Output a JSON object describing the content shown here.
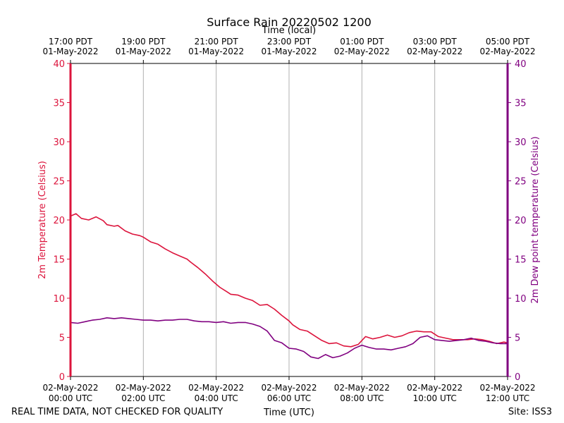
{
  "chart_data": {
    "type": "line",
    "title": "Surface Rain 20220502 1200",
    "top_axis_label": "Time (local)",
    "xlabel": "Time (UTC)",
    "ylabel_left": "2m Temperature (Celsius)",
    "ylabel_right": "2m Dew point temperature (Celsius)",
    "footer_left": "REAL TIME DATA, NOT CHECKED FOR QUALITY",
    "footer_right": "Site: ISS3",
    "ylim": [
      0,
      40
    ],
    "yticks": [
      0,
      5,
      10,
      15,
      20,
      25,
      30,
      35,
      40
    ],
    "xlim_hours": [
      0,
      12
    ],
    "grid": "vertical",
    "colors": {
      "temperature": "#dc143c",
      "dewpoint": "#800080",
      "grid": "#b0b0b0",
      "axis": "#000000"
    },
    "x_ticks_utc": [
      {
        "hour": 0,
        "date": "02-May-2022",
        "time": "00:00 UTC"
      },
      {
        "hour": 2,
        "date": "02-May-2022",
        "time": "02:00 UTC"
      },
      {
        "hour": 4,
        "date": "02-May-2022",
        "time": "04:00 UTC"
      },
      {
        "hour": 6,
        "date": "02-May-2022",
        "time": "06:00 UTC"
      },
      {
        "hour": 8,
        "date": "02-May-2022",
        "time": "08:00 UTC"
      },
      {
        "hour": 10,
        "date": "02-May-2022",
        "time": "10:00 UTC"
      },
      {
        "hour": 12,
        "date": "02-May-2022",
        "time": "12:00 UTC"
      }
    ],
    "x_ticks_local": [
      {
        "hour": 0,
        "time": "17:00 PDT",
        "date": "01-May-2022"
      },
      {
        "hour": 2,
        "time": "19:00 PDT",
        "date": "01-May-2022"
      },
      {
        "hour": 4,
        "time": "21:00 PDT",
        "date": "01-May-2022"
      },
      {
        "hour": 6,
        "time": "23:00 PDT",
        "date": "01-May-2022"
      },
      {
        "hour": 8,
        "time": "01:00 PDT",
        "date": "02-May-2022"
      },
      {
        "hour": 10,
        "time": "03:00 PDT",
        "date": "02-May-2022"
      },
      {
        "hour": 12,
        "time": "05:00 PDT",
        "date": "02-May-2022"
      }
    ],
    "series": [
      {
        "name": "2m Temperature",
        "axis": "left",
        "x": [
          0,
          0.15,
          0.3,
          0.5,
          0.7,
          0.9,
          1.0,
          1.2,
          1.3,
          1.5,
          1.7,
          1.9,
          2.0,
          2.2,
          2.4,
          2.6,
          2.8,
          3.0,
          3.2,
          3.3,
          3.5,
          3.7,
          3.9,
          4.1,
          4.3,
          4.4,
          4.6,
          4.8,
          5.0,
          5.2,
          5.4,
          5.6,
          5.8,
          6.0,
          6.1,
          6.3,
          6.5,
          6.7,
          6.9,
          7.1,
          7.3,
          7.5,
          7.7,
          7.9,
          8.1,
          8.3,
          8.5,
          8.7,
          8.9,
          9.1,
          9.3,
          9.5,
          9.7,
          9.9,
          10.1,
          10.3,
          10.5,
          10.7,
          10.9,
          11.1,
          11.3,
          11.5,
          11.7,
          11.9,
          12.0
        ],
        "y": [
          20.5,
          20.8,
          20.2,
          20.0,
          20.4,
          19.9,
          19.4,
          19.2,
          19.3,
          18.6,
          18.2,
          18.0,
          17.8,
          17.2,
          16.9,
          16.3,
          15.8,
          15.4,
          15.0,
          14.6,
          13.9,
          13.1,
          12.2,
          11.4,
          10.8,
          10.5,
          10.4,
          10.0,
          9.7,
          9.1,
          9.2,
          8.6,
          7.8,
          7.1,
          6.6,
          6.0,
          5.8,
          5.2,
          4.6,
          4.2,
          4.3,
          3.9,
          3.8,
          4.1,
          5.1,
          4.8,
          5.0,
          5.3,
          5.0,
          5.2,
          5.6,
          5.8,
          5.7,
          5.7,
          5.1,
          4.9,
          4.7,
          4.7,
          4.7,
          4.8,
          4.7,
          4.5,
          4.2,
          4.4,
          4.3
        ]
      },
      {
        "name": "2m Dew point temperature",
        "axis": "right",
        "x": [
          0,
          0.2,
          0.4,
          0.6,
          0.8,
          1.0,
          1.2,
          1.4,
          1.6,
          1.8,
          2.0,
          2.2,
          2.4,
          2.6,
          2.8,
          3.0,
          3.2,
          3.4,
          3.6,
          3.8,
          4.0,
          4.2,
          4.4,
          4.6,
          4.8,
          5.0,
          5.2,
          5.4,
          5.6,
          5.8,
          6.0,
          6.2,
          6.4,
          6.6,
          6.8,
          7.0,
          7.2,
          7.4,
          7.6,
          7.8,
          8.0,
          8.2,
          8.4,
          8.6,
          8.8,
          9.0,
          9.2,
          9.4,
          9.6,
          9.8,
          10.0,
          10.2,
          10.4,
          10.6,
          10.8,
          11.0,
          11.2,
          11.4,
          11.6,
          11.8,
          12.0
        ],
        "y": [
          6.9,
          6.8,
          7.0,
          7.2,
          7.3,
          7.5,
          7.4,
          7.5,
          7.4,
          7.3,
          7.2,
          7.2,
          7.1,
          7.2,
          7.2,
          7.3,
          7.3,
          7.1,
          7.0,
          7.0,
          6.9,
          7.0,
          6.8,
          6.9,
          6.9,
          6.7,
          6.4,
          5.8,
          4.6,
          4.3,
          3.6,
          3.5,
          3.2,
          2.5,
          2.3,
          2.8,
          2.4,
          2.6,
          3.0,
          3.6,
          4.0,
          3.7,
          3.5,
          3.5,
          3.4,
          3.6,
          3.8,
          4.2,
          5.0,
          5.2,
          4.7,
          4.6,
          4.5,
          4.6,
          4.7,
          4.9,
          4.6,
          4.5,
          4.3,
          4.2,
          4.2
        ]
      }
    ]
  }
}
